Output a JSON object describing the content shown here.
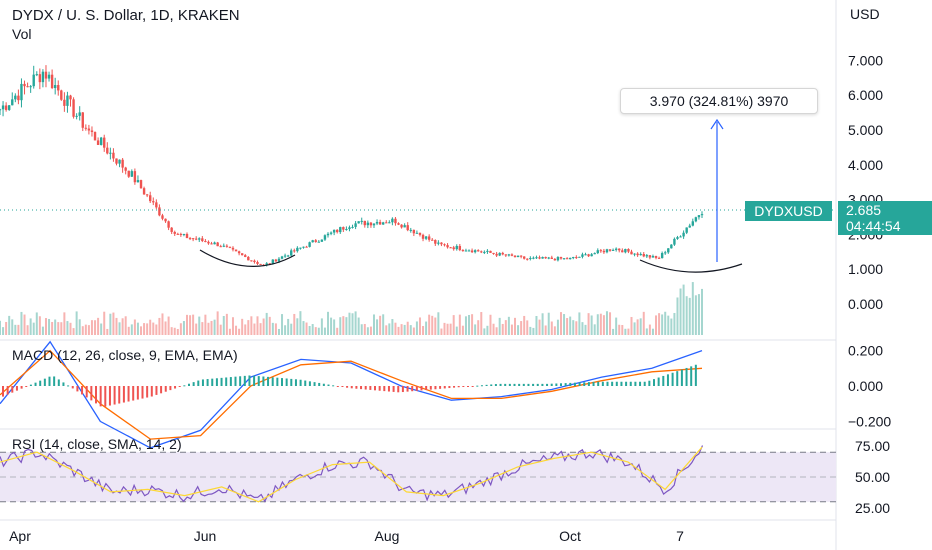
{
  "header": {
    "title": "DYDX / U. S. Dollar, 1D, KRAKEN",
    "volume_label": "Vol",
    "macd_label": "MACD (12, 26, close, 9, EMA, EMA)",
    "rsi_label": "RSI (14, close, SMA, 14, 2)",
    "currency": "USD"
  },
  "measure_label": "3.970 (324.81%) 3970",
  "last_price": {
    "symbol": "DYDXUSD",
    "price": "2.685",
    "countdown": "04:44:54",
    "color": "#26a69a"
  },
  "colors": {
    "up": "#26a69a",
    "down": "#ef5350",
    "macd_line": "#2962ff",
    "signal_line": "#ff6d00",
    "rsi_line": "#7e57c2",
    "rsi_ma": "#fdd835",
    "rsi_band": "#ede7f6",
    "annotation": "#131722",
    "arrow": "#2962ff"
  },
  "chart_data": [
    {
      "type": "candlestick",
      "pane": "price",
      "x_ticks": [
        "Apr",
        "Jun",
        "Aug",
        "Oct",
        "7"
      ],
      "y_ticks": [
        "0.000",
        "1.000",
        "2.000",
        "3.000",
        "4.000",
        "5.000",
        "6.000",
        "7.000"
      ],
      "y_range": [
        0,
        8
      ],
      "series_close_approx": [
        {
          "date": "Mar-end",
          "close": 5.6
        },
        {
          "date": "Apr",
          "close": 6.7
        },
        {
          "date": "Apr-mid",
          "close": 5.0
        },
        {
          "date": "May",
          "close": 3.7
        },
        {
          "date": "May-mid",
          "close": 2.0
        },
        {
          "date": "Jun",
          "close": 1.7
        },
        {
          "date": "Jun-mid",
          "close": 1.1
        },
        {
          "date": "Jul",
          "close": 1.7
        },
        {
          "date": "Jul-mid",
          "close": 2.3
        },
        {
          "date": "Aug",
          "close": 2.4
        },
        {
          "date": "Aug-mid",
          "close": 1.7
        },
        {
          "date": "Sep",
          "close": 1.5
        },
        {
          "date": "Sep-mid",
          "close": 1.3
        },
        {
          "date": "Oct",
          "close": 1.3
        },
        {
          "date": "Oct-mid",
          "close": 1.6
        },
        {
          "date": "Oct-7",
          "close": 1.3
        },
        {
          "date": "latest",
          "close": 2.685
        }
      ]
    },
    {
      "type": "bar",
      "pane": "macd",
      "y_ticks": [
        "0.200",
        "0.000",
        "−0.200"
      ],
      "series": [
        {
          "name": "MACD",
          "values": [
            -0.1,
            0.25,
            -0.2,
            -0.35,
            -0.25,
            0.05,
            0.15,
            0.13,
            0.0,
            -0.08,
            -0.06,
            -0.02,
            0.05,
            0.1,
            0.2
          ]
        },
        {
          "name": "Signal",
          "values": [
            -0.05,
            0.2,
            -0.1,
            -0.3,
            -0.28,
            0.0,
            0.12,
            0.14,
            0.03,
            -0.07,
            -0.07,
            -0.03,
            0.03,
            0.08,
            0.1
          ]
        }
      ]
    },
    {
      "type": "line",
      "pane": "rsi",
      "y_ticks": [
        "75.00",
        "50.00",
        "25.00"
      ],
      "bands": [
        30,
        70
      ],
      "series": [
        {
          "name": "RSI",
          "values": [
            62,
            70,
            55,
            38,
            40,
            35,
            42,
            30,
            48,
            60,
            62,
            38,
            35,
            45,
            58,
            65,
            70,
            62,
            40,
            74
          ]
        }
      ]
    }
  ]
}
